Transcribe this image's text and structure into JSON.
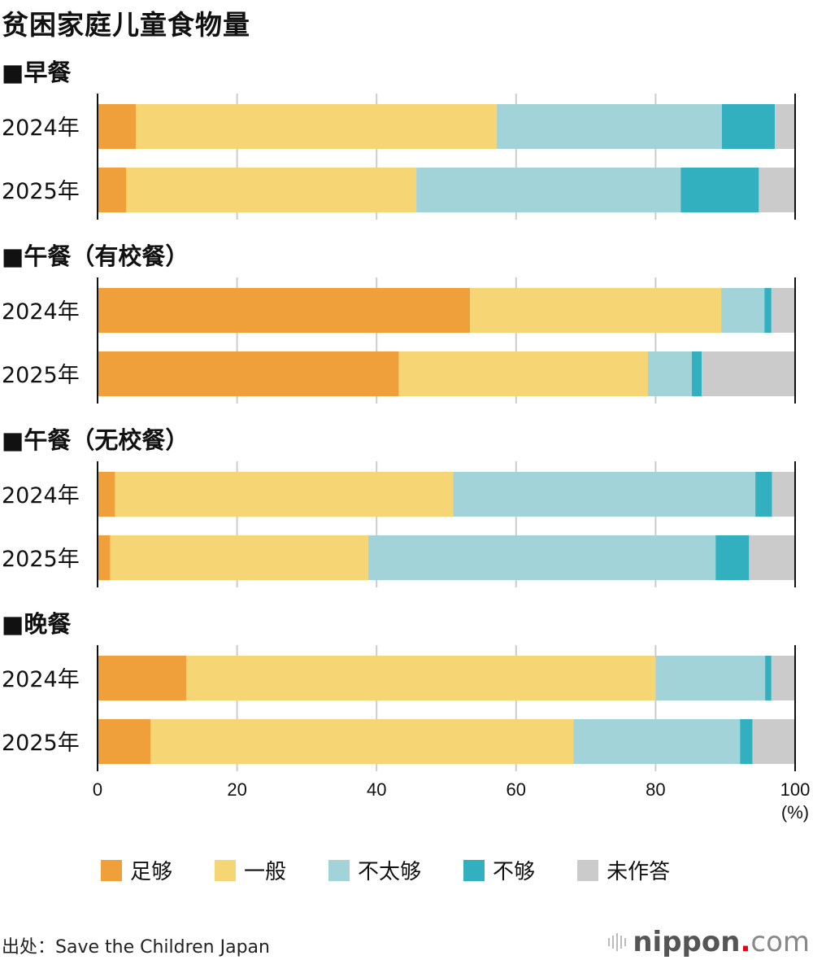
{
  "title": "贫困家庭儿童食物量",
  "source": "出处：Save the Children Japan",
  "logo": {
    "brand": "nippon",
    "dot": ".",
    "tld": "com"
  },
  "chart_data": {
    "type": "bar",
    "orientation": "horizontal",
    "stacked": true,
    "title": "贫困家庭儿童食物量",
    "xlabel": "(%)",
    "xlim": [
      0,
      100
    ],
    "xticks": [
      "0",
      "20",
      "40",
      "60",
      "80",
      "100"
    ],
    "grid": true,
    "legend_position": "bottom",
    "series_names": [
      "足够",
      "一般",
      "不太够",
      "不够",
      "未作答"
    ],
    "colors": [
      "#f0a03b",
      "#f6d574",
      "#a2d3d9",
      "#33b0c0",
      "#cbcbcb"
    ],
    "groups": [
      {
        "heading": "■早餐",
        "rows": [
          {
            "label": "2024年",
            "values": [
              5.5,
              51.7,
              32.3,
              7.6,
              2.9
            ]
          },
          {
            "label": "2025年",
            "values": [
              4.1,
              41.6,
              37.9,
              11.2,
              5.2
            ]
          }
        ]
      },
      {
        "heading": "■午餐（有校餐）",
        "rows": [
          {
            "label": "2024年",
            "values": [
              53.4,
              36.0,
              6.2,
              1.0,
              3.4
            ]
          },
          {
            "label": "2025年",
            "values": [
              43.2,
              35.7,
              6.3,
              1.4,
              13.4
            ]
          }
        ]
      },
      {
        "heading": "■午餐（无校餐）",
        "rows": [
          {
            "label": "2024年",
            "values": [
              2.5,
              48.5,
              43.3,
              2.4,
              3.3
            ]
          },
          {
            "label": "2025年",
            "values": [
              1.8,
              37.0,
              49.8,
              4.8,
              6.6
            ]
          }
        ]
      },
      {
        "heading": "■晚餐",
        "rows": [
          {
            "label": "2024年",
            "values": [
              12.7,
              67.3,
              15.7,
              0.9,
              3.4
            ]
          },
          {
            "label": "2025年",
            "values": [
              7.6,
              60.6,
              23.9,
              1.8,
              6.1
            ]
          }
        ]
      }
    ]
  }
}
